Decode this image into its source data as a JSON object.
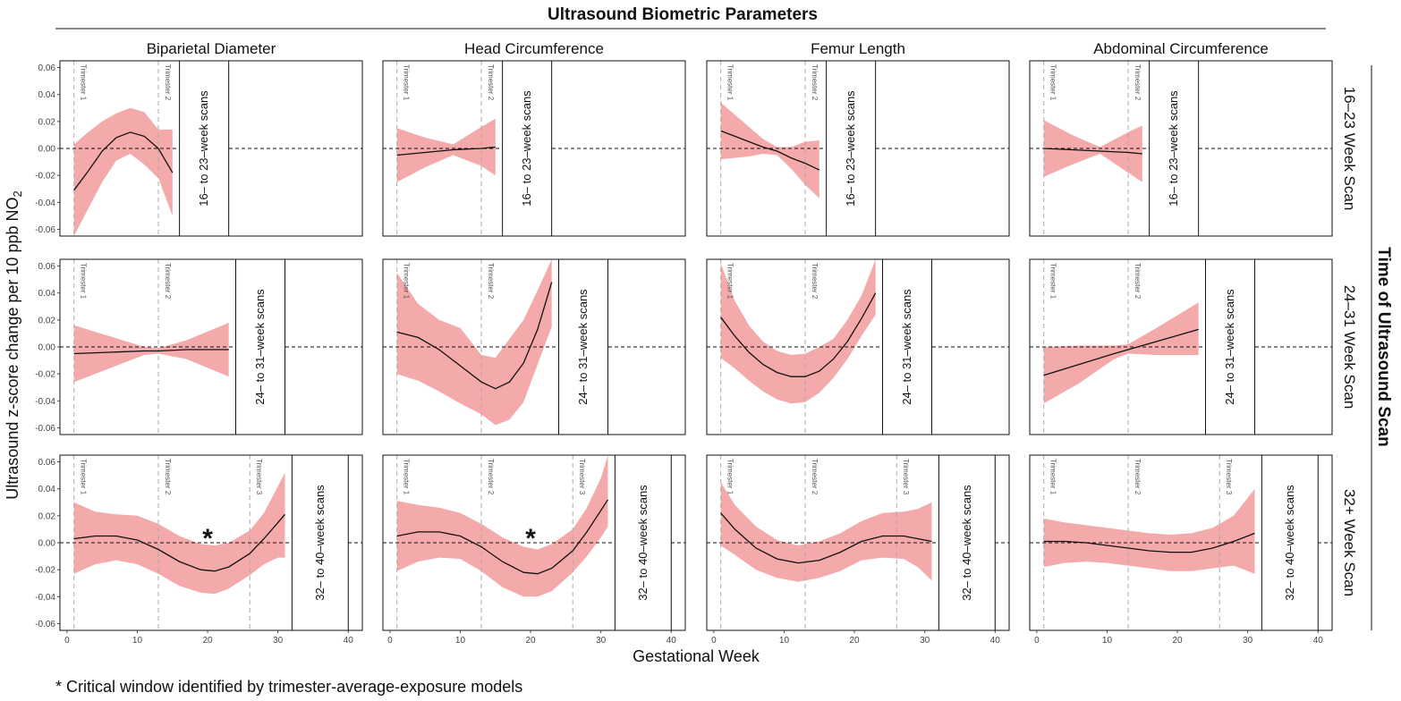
{
  "figure": {
    "title": "Ultrasound Biometric Parameters",
    "right_label": "Time of Ultrasound Scan",
    "y_label": "Ultrasound z-score change per 10 ppb NO",
    "y_label_sub": "2",
    "x_label": "Gestational Week",
    "footnote": "* Critical window identified by trimester-average-exposure models"
  },
  "chart_data": {
    "type": "line",
    "columns": [
      "Biparietal Diameter",
      "Head Circumference",
      "Femur Length",
      "Abdominal Circumference"
    ],
    "rows": [
      "16-23 Week Scan",
      "24-31 Week Scan",
      "32+ Week Scan"
    ],
    "row_display": [
      "16–23 Week Scan",
      "24–31 Week Scan",
      "32+ Week Scan"
    ],
    "scan_windows": [
      {
        "label": "16– to 23–week scans",
        "start": 16,
        "end": 23
      },
      {
        "label": "24– to 31–week scans",
        "start": 24,
        "end": 31
      },
      {
        "label": "32– to 40–week scans",
        "start": 32,
        "end": 40
      }
    ],
    "trimester_lines": [
      {
        "label": "Trimester 1",
        "week": 1
      },
      {
        "label": "Trimester 2",
        "week": 13
      },
      {
        "label": "Trimester 3",
        "week": 26
      }
    ],
    "xlim": [
      -1,
      42
    ],
    "ylim": [
      -0.065,
      0.065
    ],
    "x_ticks": [
      0,
      10,
      20,
      30,
      40
    ],
    "y_ticks": [
      -0.06,
      -0.04,
      -0.02,
      0.0,
      0.02,
      0.04,
      0.06
    ],
    "y_tick_labels": [
      "-0.06",
      "-0.04",
      "-0.02",
      "0.00",
      "0.02",
      "0.04",
      "0.06"
    ],
    "band_color": "#f4aaaa",
    "line_color": "#111111",
    "panels": [
      {
        "row": 0,
        "col": 0,
        "x": [
          1,
          3,
          5,
          7,
          9,
          11,
          13,
          15
        ],
        "estimate": [
          -0.031,
          -0.017,
          -0.002,
          0.008,
          0.012,
          0.009,
          0.0,
          -0.018
        ],
        "lower": [
          -0.065,
          -0.045,
          -0.025,
          -0.009,
          -0.004,
          -0.012,
          -0.022,
          -0.05
        ],
        "upper": [
          0.003,
          0.012,
          0.02,
          0.026,
          0.03,
          0.027,
          0.014,
          0.014
        ]
      },
      {
        "row": 0,
        "col": 1,
        "x": [
          1,
          5,
          9,
          13,
          15
        ],
        "estimate": [
          -0.005,
          -0.003,
          -0.001,
          0.0,
          0.001
        ],
        "lower": [
          -0.025,
          -0.014,
          -0.005,
          -0.013,
          -0.02
        ],
        "upper": [
          0.015,
          0.008,
          0.003,
          0.016,
          0.022
        ]
      },
      {
        "row": 0,
        "col": 2,
        "x": [
          1,
          3,
          5,
          7,
          9,
          11,
          13,
          15
        ],
        "estimate": [
          0.013,
          0.009,
          0.005,
          0.001,
          -0.002,
          -0.007,
          -0.011,
          -0.016
        ],
        "lower": [
          -0.008,
          -0.007,
          -0.006,
          -0.004,
          -0.005,
          -0.015,
          -0.027,
          -0.037
        ],
        "upper": [
          0.034,
          0.025,
          0.016,
          0.007,
          0.001,
          0.001,
          0.005,
          0.006
        ]
      },
      {
        "row": 0,
        "col": 3,
        "x": [
          1,
          5,
          9,
          13,
          15
        ],
        "estimate": [
          0.0,
          -0.001,
          -0.002,
          -0.003,
          -0.004
        ],
        "lower": [
          -0.021,
          -0.012,
          -0.004,
          -0.018,
          -0.025
        ],
        "upper": [
          0.021,
          0.01,
          0.001,
          0.012,
          0.017
        ]
      },
      {
        "row": 1,
        "col": 0,
        "x": [
          1,
          6,
          11,
          13,
          17,
          23
        ],
        "estimate": [
          -0.005,
          -0.004,
          -0.003,
          -0.003,
          -0.002,
          -0.002
        ],
        "lower": [
          -0.026,
          -0.016,
          -0.006,
          -0.005,
          -0.009,
          -0.022
        ],
        "upper": [
          0.016,
          0.008,
          0.0,
          -0.001,
          0.005,
          0.018
        ]
      },
      {
        "row": 1,
        "col": 1,
        "x": [
          1,
          4,
          7,
          10,
          13,
          15,
          17,
          19,
          21,
          23
        ],
        "estimate": [
          0.011,
          0.007,
          -0.002,
          -0.014,
          -0.026,
          -0.031,
          -0.026,
          -0.012,
          0.013,
          0.048
        ],
        "lower": [
          -0.02,
          -0.025,
          -0.033,
          -0.042,
          -0.05,
          -0.058,
          -0.054,
          -0.041,
          -0.013,
          0.015
        ],
        "upper": [
          0.055,
          0.032,
          0.02,
          0.014,
          -0.006,
          -0.008,
          0.006,
          0.02,
          0.042,
          0.065
        ]
      },
      {
        "row": 1,
        "col": 2,
        "x": [
          1,
          3,
          5,
          7,
          9,
          11,
          13,
          15,
          17,
          19,
          21,
          23
        ],
        "estimate": [
          0.022,
          0.008,
          -0.004,
          -0.013,
          -0.019,
          -0.022,
          -0.022,
          -0.018,
          -0.009,
          0.004,
          0.021,
          0.04
        ],
        "lower": [
          -0.008,
          -0.016,
          -0.025,
          -0.033,
          -0.039,
          -0.042,
          -0.041,
          -0.034,
          -0.023,
          -0.009,
          0.008,
          0.024
        ],
        "upper": [
          0.062,
          0.034,
          0.016,
          0.004,
          -0.003,
          -0.006,
          -0.005,
          0.0,
          0.006,
          0.02,
          0.038,
          0.065
        ]
      },
      {
        "row": 1,
        "col": 3,
        "x": [
          1,
          6,
          11,
          13,
          17,
          23
        ],
        "estimate": [
          -0.021,
          -0.013,
          -0.005,
          -0.002,
          0.004,
          0.013
        ],
        "lower": [
          -0.042,
          -0.027,
          -0.009,
          -0.005,
          -0.006,
          -0.006
        ],
        "upper": [
          0.0,
          0.001,
          0.001,
          0.002,
          0.014,
          0.033
        ]
      },
      {
        "row": 2,
        "col": 0,
        "x": [
          1,
          4,
          7,
          10,
          13,
          16,
          19,
          21,
          23,
          26,
          28,
          30,
          31
        ],
        "estimate": [
          0.003,
          0.005,
          0.005,
          0.002,
          -0.005,
          -0.014,
          -0.02,
          -0.021,
          -0.018,
          -0.008,
          0.003,
          0.015,
          0.021
        ],
        "lower": [
          -0.023,
          -0.016,
          -0.013,
          -0.016,
          -0.023,
          -0.032,
          -0.037,
          -0.038,
          -0.034,
          -0.024,
          -0.016,
          -0.011,
          -0.011
        ],
        "upper": [
          0.03,
          0.023,
          0.021,
          0.02,
          0.014,
          0.005,
          -0.001,
          -0.002,
          0.0,
          0.009,
          0.022,
          0.042,
          0.052
        ]
      },
      {
        "row": 2,
        "col": 1,
        "x": [
          1,
          4,
          7,
          10,
          13,
          16,
          19,
          21,
          23,
          26,
          28,
          30,
          31
        ],
        "estimate": [
          0.005,
          0.008,
          0.008,
          0.005,
          -0.003,
          -0.014,
          -0.022,
          -0.023,
          -0.019,
          -0.006,
          0.008,
          0.024,
          0.032
        ],
        "lower": [
          -0.021,
          -0.014,
          -0.011,
          -0.012,
          -0.021,
          -0.033,
          -0.04,
          -0.04,
          -0.036,
          -0.022,
          -0.01,
          0.004,
          0.012
        ],
        "upper": [
          0.031,
          0.028,
          0.026,
          0.022,
          0.014,
          0.004,
          -0.003,
          -0.005,
          -0.001,
          0.01,
          0.026,
          0.048,
          0.065
        ]
      },
      {
        "row": 2,
        "col": 2,
        "x": [
          1,
          3,
          6,
          9,
          12,
          15,
          18,
          21,
          24,
          27,
          29,
          31
        ],
        "estimate": [
          0.022,
          0.01,
          -0.004,
          -0.012,
          -0.015,
          -0.013,
          -0.007,
          0.001,
          0.005,
          0.005,
          0.003,
          0.001
        ],
        "lower": [
          -0.002,
          -0.009,
          -0.02,
          -0.026,
          -0.029,
          -0.026,
          -0.021,
          -0.013,
          -0.011,
          -0.012,
          -0.018,
          -0.028
        ],
        "upper": [
          0.045,
          0.028,
          0.012,
          0.002,
          -0.002,
          0.001,
          0.007,
          0.016,
          0.022,
          0.023,
          0.025,
          0.03
        ]
      },
      {
        "row": 2,
        "col": 3,
        "x": [
          1,
          4,
          7,
          10,
          13,
          16,
          19,
          22,
          25,
          28,
          31
        ],
        "estimate": [
          0.001,
          0.001,
          0.0,
          -0.002,
          -0.004,
          -0.006,
          -0.007,
          -0.007,
          -0.004,
          0.001,
          0.007
        ],
        "lower": [
          -0.018,
          -0.015,
          -0.014,
          -0.015,
          -0.017,
          -0.019,
          -0.021,
          -0.021,
          -0.019,
          -0.017,
          -0.023
        ],
        "upper": [
          0.018,
          0.015,
          0.013,
          0.011,
          0.009,
          0.007,
          0.006,
          0.007,
          0.011,
          0.02,
          0.04
        ]
      }
    ],
    "critical_markers": [
      {
        "row": 2,
        "col": 0,
        "symbol": "*",
        "x": 20,
        "y": 0.006
      },
      {
        "row": 2,
        "col": 1,
        "symbol": "*",
        "x": 20,
        "y": 0.006
      }
    ]
  }
}
